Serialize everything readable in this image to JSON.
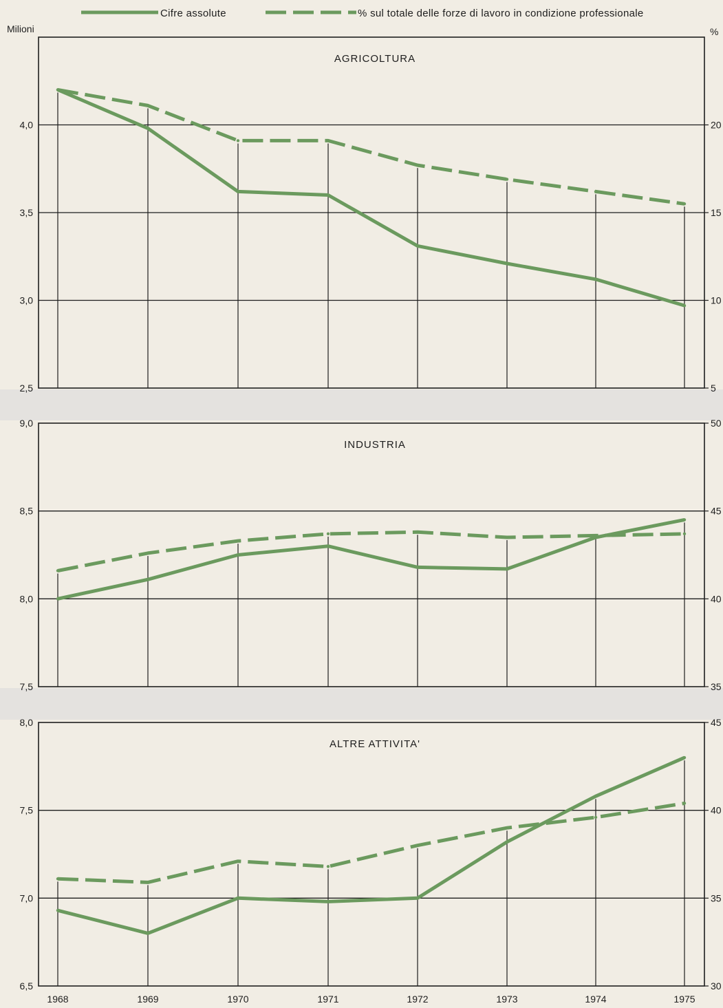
{
  "legend": {
    "absolute": "Cifre assolute",
    "percent": "% sul totale delle forze di lavoro in condizione professionale"
  },
  "units": {
    "left": "Milioni",
    "right": "%"
  },
  "colors": {
    "line": "#6b9a5e",
    "background": "#f1ede4",
    "separator": "#e4e2df",
    "axis": "#1e1e1e"
  },
  "chart_data": [
    {
      "type": "line",
      "title": "AGRICOLTURA",
      "x": [
        "1968",
        "1969",
        "1970",
        "1971",
        "1972",
        "1973",
        "1974",
        "1975"
      ],
      "ylim_left": [
        2.5,
        4.5
      ],
      "ylim_right": [
        5,
        25
      ],
      "left_ticks": [
        "2,5",
        "3,0",
        "3,5",
        "4,0"
      ],
      "left_tick_values": [
        2.5,
        3.0,
        3.5,
        4.0
      ],
      "right_ticks": [
        "5",
        "10",
        "15",
        "20"
      ],
      "right_tick_values": [
        5,
        10,
        15,
        20
      ],
      "series": [
        {
          "name": "Cifre assolute",
          "axis": "left",
          "style": "solid",
          "values": [
            4.2,
            3.98,
            3.62,
            3.6,
            3.31,
            3.21,
            3.12,
            2.97
          ]
        },
        {
          "name": "% sul totale delle forze di lavoro in condizione professionale",
          "axis": "right",
          "style": "dashed",
          "values": [
            22.0,
            21.1,
            19.1,
            19.1,
            17.7,
            16.9,
            16.2,
            15.5
          ]
        }
      ]
    },
    {
      "type": "line",
      "title": "INDUSTRIA",
      "x": [
        "1968",
        "1969",
        "1970",
        "1971",
        "1972",
        "1973",
        "1974",
        "1975"
      ],
      "ylim_left": [
        7.5,
        9.0
      ],
      "ylim_right": [
        35,
        50
      ],
      "left_ticks": [
        "7,5",
        "8,0",
        "8,5",
        "9,0"
      ],
      "left_tick_values": [
        7.5,
        8.0,
        8.5,
        9.0
      ],
      "right_ticks": [
        "35",
        "40",
        "45",
        "50"
      ],
      "right_tick_values": [
        35,
        40,
        45,
        50
      ],
      "series": [
        {
          "name": "Cifre assolute",
          "axis": "left",
          "style": "solid",
          "values": [
            8.0,
            8.11,
            8.25,
            8.3,
            8.18,
            8.17,
            8.35,
            8.45
          ]
        },
        {
          "name": "% sul totale delle forze di lavoro in condizione professionale",
          "axis": "right",
          "style": "dashed",
          "values": [
            41.6,
            42.6,
            43.3,
            43.7,
            43.8,
            43.5,
            43.6,
            43.7
          ]
        }
      ]
    },
    {
      "type": "line",
      "title": "ALTRE ATTIVITA'",
      "x": [
        "1968",
        "1969",
        "1970",
        "1971",
        "1972",
        "1973",
        "1974",
        "1975"
      ],
      "ylim_left": [
        6.5,
        8.0
      ],
      "ylim_right": [
        30,
        45
      ],
      "left_ticks": [
        "6,5",
        "7,0",
        "7,5",
        "8,0"
      ],
      "left_tick_values": [
        6.5,
        7.0,
        7.5,
        8.0
      ],
      "right_ticks": [
        "30",
        "35",
        "40",
        "45"
      ],
      "right_tick_values": [
        30,
        35,
        40,
        45
      ],
      "series": [
        {
          "name": "Cifre assolute",
          "axis": "left",
          "style": "solid",
          "values": [
            6.93,
            6.8,
            7.0,
            6.98,
            7.0,
            7.32,
            7.58,
            7.8
          ]
        },
        {
          "name": "% sul totale delle forze di lavoro in condizione professionale",
          "axis": "right",
          "style": "dashed",
          "values": [
            36.1,
            35.9,
            37.1,
            36.8,
            38.0,
            39.0,
            39.6,
            40.4
          ]
        }
      ]
    }
  ]
}
